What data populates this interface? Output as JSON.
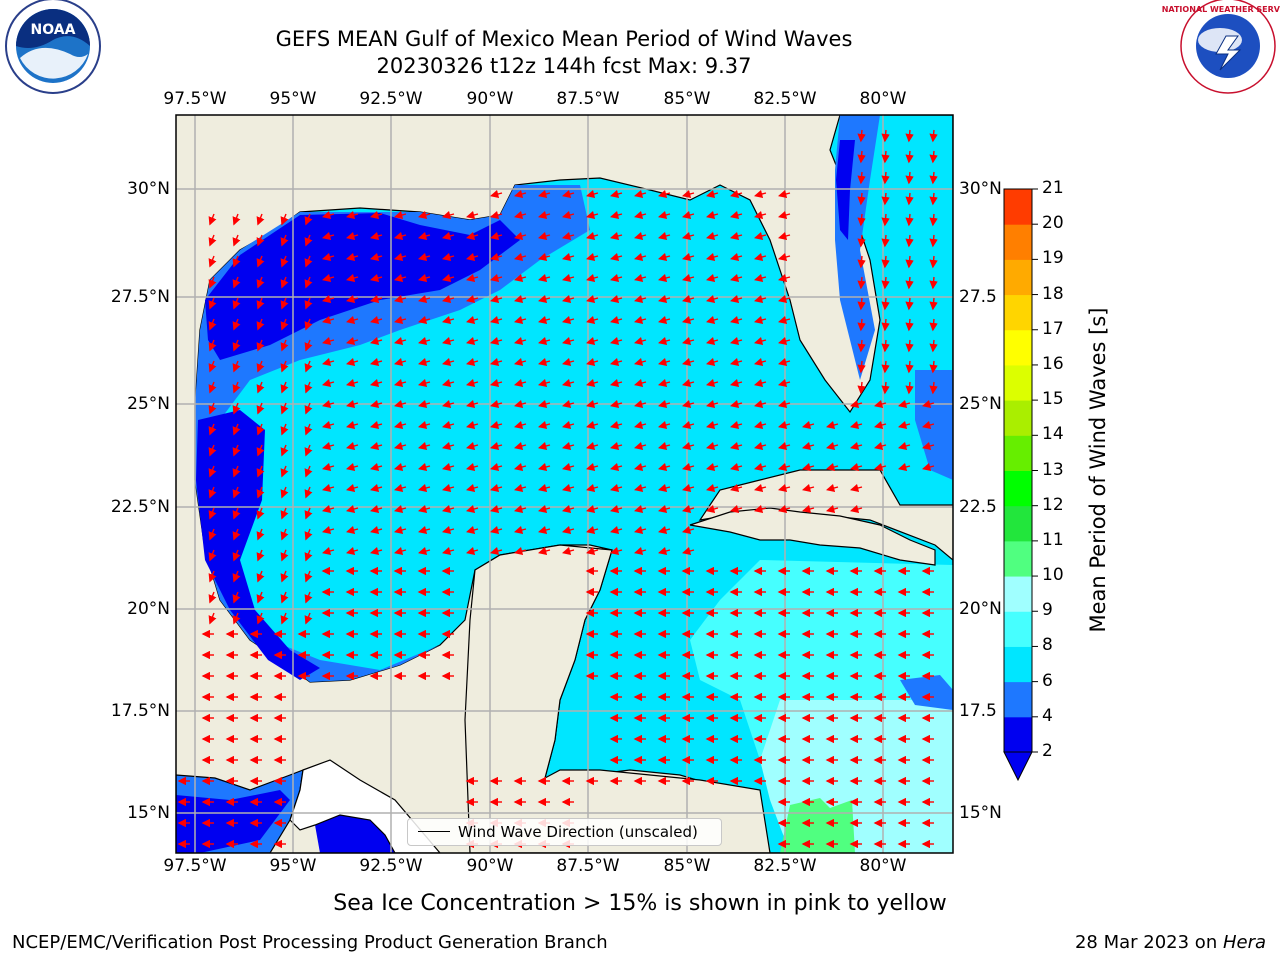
{
  "title": {
    "line1": "GEFS MEAN Gulf of Mexico Mean Period of Wind Waves",
    "line2": "20230326 t12z 144h fcst   Max: 9.37"
  },
  "logos": {
    "left": "NOAA",
    "left_ring": "NATIONAL OCEANIC AND ATMOSPHERIC ADMINISTRATION · U.S. DEPARTMENT OF COMMERCE",
    "right_ring": "NATIONAL WEATHER SERVICE"
  },
  "map": {
    "lon_labels": [
      "97.5°W",
      "95°W",
      "92.5°W",
      "90°W",
      "87.5°W",
      "85°W",
      "82.5°W",
      "80°W"
    ],
    "lat_labels_left": [
      "30°N",
      "27.5°N",
      "25°N",
      "22.5°N",
      "20°N",
      "17.5°N",
      "15°N"
    ],
    "lat_labels_right": [
      "30°N",
      "27.5",
      "25°N",
      "22.5",
      "20°N",
      "17.5",
      "15°N"
    ],
    "legend_label": "Wind Wave Direction (unscaled)",
    "colors": {
      "land": "#efedde",
      "grid": "#b0b0b0",
      "arrow": "#ff0000"
    }
  },
  "colorbar": {
    "label": "Mean Period of Wind Waves [s]",
    "ticks": [
      "2",
      "4",
      "6",
      "8",
      "9",
      "10",
      "11",
      "12",
      "13",
      "14",
      "15",
      "16",
      "17",
      "18",
      "19",
      "20",
      "21"
    ],
    "colors": [
      "#0000f0",
      "#1e78ff",
      "#00e6ff",
      "#46ffff",
      "#a0ffff",
      "#50ff80",
      "#22e63c",
      "#00ff00",
      "#66ee00",
      "#aaee00",
      "#dcff00",
      "#ffff00",
      "#ffd500",
      "#ffaa00",
      "#ff7f00",
      "#ff3c00",
      "#ff0000"
    ]
  },
  "note": "Sea Ice Concentration > 15% is shown in pink to yellow",
  "footer": {
    "left": "NCEP/EMC/Verification Post Processing Product Generation Branch",
    "right_date": "28 Mar 2023 on ",
    "right_host": "Hera"
  }
}
